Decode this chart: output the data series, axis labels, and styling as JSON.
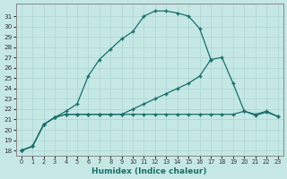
{
  "xlabel": "Humidex (Indice chaleur)",
  "background_color": "#c5e8e5",
  "grid_color": "#b0d8d5",
  "line_color": "#1a6e6a",
  "xlim_min": -0.5,
  "xlim_max": 23.5,
  "ylim_min": 17.5,
  "ylim_max": 32.2,
  "xticks": [
    0,
    1,
    2,
    3,
    4,
    5,
    6,
    7,
    8,
    9,
    10,
    11,
    12,
    13,
    14,
    15,
    16,
    17,
    18,
    19,
    20,
    21,
    22,
    23
  ],
  "yticks": [
    18,
    19,
    20,
    21,
    22,
    23,
    24,
    25,
    26,
    27,
    28,
    29,
    30,
    31
  ],
  "curve_main_x": [
    0,
    1,
    2,
    3,
    4,
    5,
    6,
    7,
    8,
    9,
    10,
    11,
    12,
    13,
    14,
    15,
    16,
    17
  ],
  "curve_main_y": [
    18.0,
    18.4,
    20.5,
    21.2,
    21.8,
    22.5,
    25.2,
    26.8,
    27.8,
    28.8,
    29.5,
    31.0,
    31.5,
    31.5,
    31.3,
    31.0,
    29.8,
    26.8
  ],
  "curve_mid_x": [
    0,
    1,
    2,
    3,
    4,
    5,
    6,
    7,
    8,
    9,
    10,
    11,
    12,
    13,
    14,
    15,
    16,
    17,
    18,
    19,
    20,
    21,
    22,
    23
  ],
  "curve_mid_y": [
    18.0,
    18.4,
    20.5,
    21.2,
    21.5,
    21.5,
    21.5,
    21.5,
    21.5,
    21.5,
    22.0,
    22.5,
    23.0,
    23.5,
    24.0,
    24.5,
    25.2,
    26.8,
    27.0,
    24.5,
    21.8,
    21.5,
    21.8,
    21.3
  ],
  "curve_flat_x": [
    0,
    1,
    2,
    3,
    4,
    5,
    6,
    7,
    8,
    9,
    10,
    11,
    12,
    13,
    14,
    15,
    16,
    17,
    18,
    19,
    20,
    21,
    22,
    23
  ],
  "curve_flat_y": [
    18.0,
    18.4,
    20.5,
    21.2,
    21.5,
    21.5,
    21.5,
    21.5,
    21.5,
    21.5,
    21.5,
    21.5,
    21.5,
    21.5,
    21.5,
    21.5,
    21.5,
    21.5,
    21.5,
    21.5,
    21.8,
    21.4,
    21.7,
    21.3
  ]
}
